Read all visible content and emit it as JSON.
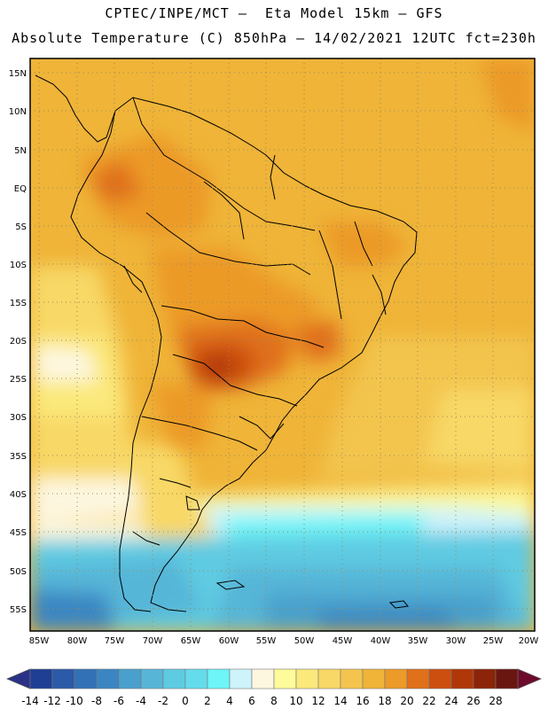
{
  "title": {
    "line1": "CPTEC/INPE/MCT –  Eta Model 15km – GFS",
    "line2": "Absolute Temperature (C) 850hPa – 14/02/2021 12UTC fct=230h"
  },
  "map": {
    "lat_labels": [
      "15N",
      "10N",
      "5N",
      "EQ",
      "5S",
      "10S",
      "15S",
      "20S",
      "25S",
      "30S",
      "35S",
      "40S",
      "45S",
      "50S",
      "55S"
    ],
    "lon_labels": [
      "85W",
      "80W",
      "75W",
      "70W",
      "65W",
      "60W",
      "55W",
      "50W",
      "45W",
      "40W",
      "35W",
      "30W",
      "25W",
      "20W"
    ]
  },
  "colorbar": {
    "labels": [
      "-14",
      "-12",
      "-10",
      "-8",
      "-6",
      "-4",
      "-2",
      "0",
      "2",
      "4",
      "6",
      "8",
      "10",
      "12",
      "14",
      "16",
      "18",
      "20",
      "22",
      "24",
      "26",
      "28"
    ],
    "colors": [
      "#1f3f94",
      "#2a5aa8",
      "#3271b6",
      "#3b86c2",
      "#4aa0cc",
      "#57b6d8",
      "#5ecbe2",
      "#64dceb",
      "#6ef5f7",
      "#cdf3fb",
      "#fdf7e0",
      "#fdfb9a",
      "#fbe97c",
      "#f8d866",
      "#f3c54e",
      "#efb438",
      "#ec9a28",
      "#e0701a",
      "#cc4f10",
      "#b03808",
      "#8b2408",
      "#6a1610"
    ],
    "left_arrow_color": "#2a3288",
    "right_arrow_color": "#6e0a2a"
  }
}
